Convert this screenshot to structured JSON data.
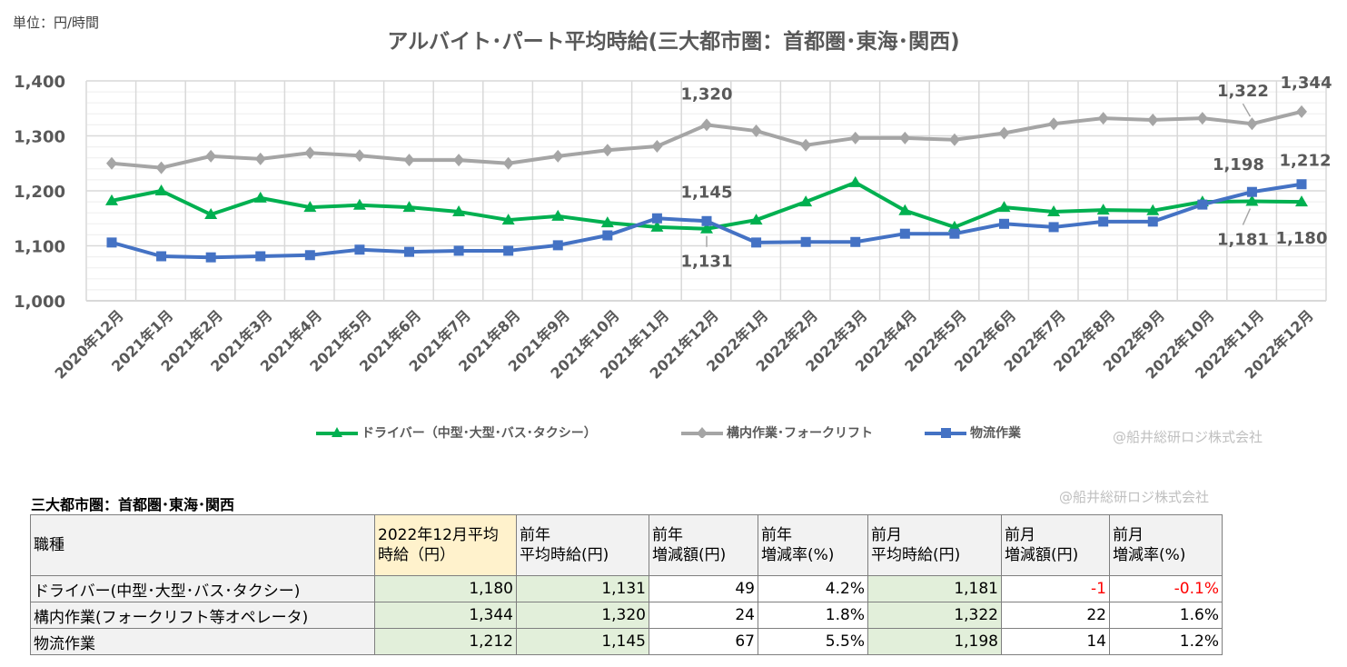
{
  "unit_label": "単位：円/時間",
  "watermark": "@船井総研ロジ株式会社",
  "chart_data": {
    "type": "line",
    "title": "アルバイト･パート平均時給(三大都市圏：首都圏･東海･関西)",
    "ylim": [
      1000,
      1400
    ],
    "yticks": [
      1000,
      1100,
      1200,
      1300,
      1400
    ],
    "ytick_labels": [
      "1,000",
      "1,100",
      "1,200",
      "1,300",
      "1,400"
    ],
    "grid": true,
    "legend_position": "bottom",
    "categories": [
      "2020年12月",
      "2021年1月",
      "2021年2月",
      "2021年3月",
      "2021年4月",
      "2021年5月",
      "2021年6月",
      "2021年7月",
      "2021年8月",
      "2021年9月",
      "2021年10月",
      "2021年11月",
      "2021年12月",
      "2022年1月",
      "2022年2月",
      "2022年3月",
      "2022年4月",
      "2022年5月",
      "2022年6月",
      "2022年7月",
      "2022年8月",
      "2022年9月",
      "2022年10月",
      "2022年11月",
      "2022年12月"
    ],
    "series": [
      {
        "name": "ドライバー（中型･大型･バス･タクシー）",
        "color": "#00b050",
        "marker": "triangle",
        "values": [
          1182,
          1200,
          1157,
          1187,
          1170,
          1174,
          1170,
          1162,
          1147,
          1154,
          1142,
          1134,
          1131,
          1147,
          1180,
          1215,
          1164,
          1134,
          1170,
          1162,
          1165,
          1164,
          1180,
          1181,
          1180
        ],
        "labels": [
          {
            "index": 12,
            "text": "1,131"
          },
          {
            "index": 23,
            "text": "1,181"
          },
          {
            "index": 24,
            "text": "1,180"
          }
        ]
      },
      {
        "name": "構内作業･フォークリフト",
        "color": "#a5a5a5",
        "marker": "diamond",
        "values": [
          1250,
          1242,
          1263,
          1258,
          1269,
          1264,
          1256,
          1256,
          1250,
          1263,
          1274,
          1281,
          1320,
          1309,
          1283,
          1296,
          1296,
          1293,
          1305,
          1322,
          1332,
          1329,
          1332,
          1322,
          1344
        ],
        "labels": [
          {
            "index": 12,
            "text": "1,320"
          },
          {
            "index": 23,
            "text": "1,322"
          },
          {
            "index": 24,
            "text": "1,344"
          }
        ]
      },
      {
        "name": "物流作業",
        "color": "#4472c4",
        "marker": "square",
        "values": [
          1106,
          1081,
          1079,
          1081,
          1083,
          1093,
          1089,
          1091,
          1091,
          1101,
          1119,
          1150,
          1145,
          1106,
          1107,
          1107,
          1122,
          1122,
          1140,
          1134,
          1144,
          1144,
          1175,
          1198,
          1212
        ],
        "labels": [
          {
            "index": 12,
            "text": "1,145"
          },
          {
            "index": 23,
            "text": "1,198"
          },
          {
            "index": 24,
            "text": "1,212"
          }
        ]
      }
    ]
  },
  "table": {
    "title": "三大都市圏：首都圏･東海･関西",
    "headers": [
      [
        "職種"
      ],
      [
        "2022年12月平均",
        "時給（円）"
      ],
      [
        "前年",
        "平均時給(円)"
      ],
      [
        "前年",
        "増減額(円)"
      ],
      [
        "前年",
        "増減率(%)"
      ],
      [
        "前月",
        "平均時給(円)"
      ],
      [
        "前月",
        "増減額(円)"
      ],
      [
        "前月",
        "増減率(%)"
      ]
    ],
    "rows": [
      [
        "ドライバー(中型･大型･バス･タクシー)",
        "1,180",
        "1,131",
        "49",
        "4.2%",
        "1,181",
        "-1",
        "-0.1%"
      ],
      [
        "構内作業(フォークリフト等オペレータ)",
        "1,344",
        "1,320",
        "24",
        "1.8%",
        "1,322",
        "22",
        "1.6%"
      ],
      [
        "物流作業",
        "1,212",
        "1,145",
        "67",
        "5.5%",
        "1,198",
        "14",
        "1.2%"
      ]
    ],
    "negative_color": "#ff0000"
  }
}
